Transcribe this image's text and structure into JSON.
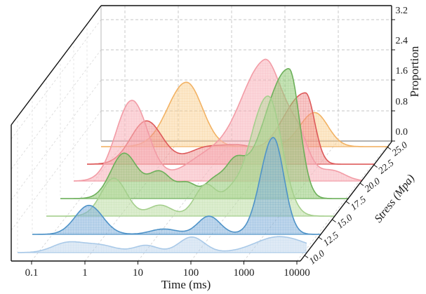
{
  "figure": {
    "xlabel": "Time (ms)",
    "ylabel": "Stress (Mpa)",
    "zlabel": "Proportion"
  },
  "chart_data": {
    "type": "area",
    "variant": "3d-ridgeline-kde",
    "xlabel": "Time (ms)",
    "ylabel": "Stress (Mpa)",
    "zlabel": "Proportion",
    "xscale": "log",
    "x_ticks": [
      "0.1",
      "1",
      "10",
      "100",
      "1000",
      "10000"
    ],
    "y_ticks": [
      "10.0",
      "12.5",
      "15.0",
      "17.5",
      "20.0",
      "22.5",
      "25.0"
    ],
    "z_ticks": [
      "0.0",
      "0.8",
      "1.6",
      "2.4",
      "3.2"
    ],
    "xlim_ms": [
      0.05,
      18000
    ],
    "zlim": [
      0.0,
      3.2
    ],
    "grid": true,
    "legend": false,
    "series": [
      {
        "name": "stress 10.0 MPa",
        "stress": 10.0,
        "stroke": "#a9c9e8",
        "fill": "rgba(174,203,230,0.40)",
        "components": [
          {
            "time_ms": 0.35,
            "amplitude": 0.22,
            "sigma": 0.28
          },
          {
            "time_ms": 1.4,
            "amplitude": 0.18,
            "sigma": 0.32
          },
          {
            "time_ms": 11,
            "amplitude": 0.17,
            "sigma": 0.22
          },
          {
            "time_ms": 80,
            "amplitude": 0.37,
            "sigma": 0.24
          },
          {
            "time_ms": 3600,
            "amplitude": 0.38,
            "sigma": 0.45,
            "sigma_right": 0.5
          }
        ]
      },
      {
        "name": "stress 12.5 MPa",
        "stress": 12.5,
        "stroke": "#4f93c8",
        "fill": "rgba(139,180,220,0.55)",
        "components": [
          {
            "time_ms": 0.5,
            "amplitude": 0.7,
            "sigma": 0.26
          },
          {
            "time_ms": 13,
            "amplitude": 0.13,
            "sigma": 0.25
          },
          {
            "time_ms": 92,
            "amplitude": 0.44,
            "sigma": 0.21
          },
          {
            "time_ms": 1500,
            "amplitude": 2.34,
            "sigma": 0.24,
            "sigma_right": 0.2
          }
        ]
      },
      {
        "name": "stress 15.0 MPa",
        "stress": 15.0,
        "stroke": "#a5cf8d",
        "fill": "rgba(186,220,160,0.50)",
        "components": [
          {
            "time_ms": 0.8,
            "amplitude": 0.93,
            "sigma": 0.24
          },
          {
            "time_ms": 6,
            "amplitude": 0.27,
            "sigma": 0.22
          },
          {
            "time_ms": 44,
            "amplitude": 0.77,
            "sigma": 0.21
          },
          {
            "time_ms": 127,
            "amplitude": 0.31,
            "sigma": 0.16
          },
          {
            "time_ms": 650,
            "amplitude": 2.95,
            "sigma": 0.35,
            "sigma_right": 0.26
          }
        ]
      },
      {
        "name": "stress 17.5 MPa",
        "stress": 17.5,
        "stroke": "#6db05a",
        "fill": "rgba(151,204,122,0.55)",
        "components": [
          {
            "time_ms": 0.7,
            "amplitude": 1.13,
            "sigma": 0.25
          },
          {
            "time_ms": 3.3,
            "amplitude": 0.66,
            "sigma": 0.22
          },
          {
            "time_ms": 11,
            "amplitude": 0.37,
            "sigma": 0.18
          },
          {
            "time_ms": 35,
            "amplitude": 0.43,
            "sigma": 0.18
          },
          {
            "time_ms": 85,
            "amplitude": 0.7,
            "sigma": 0.18
          },
          {
            "time_ms": 900,
            "amplitude": 3.25,
            "sigma": 0.47,
            "sigma_right": 0.2
          }
        ]
      },
      {
        "name": "stress 20.0 MPa",
        "stress": 20.0,
        "stroke": "#f29ca6",
        "fill": "rgba(248,180,188,0.55)",
        "components": [
          {
            "time_ms": 0.55,
            "amplitude": 2.05,
            "sigma": 0.3
          },
          {
            "time_ms": 15,
            "amplitude": 0.62,
            "sigma": 0.45
          },
          {
            "time_ms": 170,
            "amplitude": 2.9,
            "sigma": 0.45,
            "sigma_right": 0.3
          },
          {
            "time_ms": 700,
            "amplitude": 1.2,
            "sigma": 0.3,
            "sigma_right": 0.22
          },
          {
            "time_ms": 3200,
            "amplitude": 0.27,
            "sigma": 0.25
          }
        ]
      },
      {
        "name": "stress 22.5 MPa",
        "stress": 22.5,
        "stroke": "#dd5a5a",
        "fill": "rgba(242,148,148,0.50)",
        "components": [
          {
            "time_ms": 0.6,
            "amplitude": 1.12,
            "sigma": 0.3
          },
          {
            "time_ms": 8,
            "amplitude": 0.42,
            "sigma": 0.35
          },
          {
            "time_ms": 35,
            "amplitude": 0.38,
            "sigma": 0.3
          },
          {
            "time_ms": 600,
            "amplitude": 1.85,
            "sigma": 0.45,
            "sigma_right": 0.17
          }
        ]
      },
      {
        "name": "stress 25.0 MPa",
        "stress": 25.0,
        "stroke": "#f2b264",
        "fill": "rgba(250,211,152,0.50)",
        "components": [
          {
            "time_ms": 1.9,
            "amplitude": 1.7,
            "sigma": 0.35,
            "sigma_right": 0.3
          },
          {
            "time_ms": 500,
            "amplitude": 0.9,
            "sigma": 0.28,
            "sigma_right": 0.25
          }
        ]
      }
    ]
  }
}
